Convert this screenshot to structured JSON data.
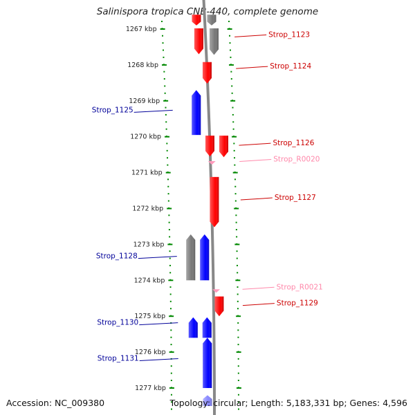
{
  "title": "Salinispora tropica CNB-440, complete genome",
  "footer": {
    "accession": "Accession: NC_009380",
    "summary": "Topology: circular; Length: 5,183,331 bp; Genes: 4,596"
  },
  "ticks": [
    {
      "label": "1267 kbp",
      "kb": 1267
    },
    {
      "label": "1268 kbp",
      "kb": 1268
    },
    {
      "label": "1269 kbp",
      "kb": 1269
    },
    {
      "label": "1270 kbp",
      "kb": 1270
    },
    {
      "label": "1271 kbp",
      "kb": 1271
    },
    {
      "label": "1272 kbp",
      "kb": 1272
    },
    {
      "label": "1273 kbp",
      "kb": 1273
    },
    {
      "label": "1274 kbp",
      "kb": 1274
    },
    {
      "label": "1275 kbp",
      "kb": 1275
    },
    {
      "label": "1276 kbp",
      "kb": 1276
    },
    {
      "label": "1277 kbp",
      "kb": 1277
    }
  ],
  "features": [
    {
      "strand": "forward",
      "type": "cds",
      "color": "#ff0000",
      "start": 1266.6,
      "end": 1266.9
    },
    {
      "strand": "forward",
      "type": "pseudo",
      "color": "#777777",
      "start": 1266.6,
      "end": 1266.9
    },
    {
      "strand": "forward",
      "type": "cds",
      "color": "#ff0000",
      "start": 1266.98,
      "end": 1267.7
    },
    {
      "strand": "forward",
      "type": "pseudo",
      "color": "#777777",
      "start": 1266.98,
      "end": 1267.72
    },
    {
      "strand": "forward",
      "type": "cds",
      "color": "#ff0000",
      "start": 1267.92,
      "end": 1268.52
    },
    {
      "strand": "reverse",
      "type": "cds",
      "color": "#0000ff",
      "start": 1268.7,
      "end": 1269.95
    },
    {
      "strand": "forward",
      "type": "cds",
      "color": "#ff0000",
      "start": 1269.97,
      "end": 1270.55
    },
    {
      "strand": "forward",
      "type": "cds",
      "color": "#ff0000",
      "start": 1269.97,
      "end": 1270.57
    },
    {
      "strand": "forward",
      "type": "rna",
      "color": "#ff99bb",
      "start": 1270.68,
      "end": 1270.77
    },
    {
      "strand": "forward",
      "type": "cds",
      "color": "#ff0000",
      "start": 1271.12,
      "end": 1272.52
    },
    {
      "strand": "reverse",
      "type": "pseudo",
      "color": "#777777",
      "start": 1272.72,
      "end": 1274.0
    },
    {
      "strand": "reverse",
      "type": "cds",
      "color": "#0000ff",
      "start": 1272.72,
      "end": 1274.0
    },
    {
      "strand": "forward",
      "type": "rna",
      "color": "#ff99bb",
      "start": 1274.25,
      "end": 1274.33
    },
    {
      "strand": "forward",
      "type": "cds",
      "color": "#ff0000",
      "start": 1274.45,
      "end": 1275.0
    },
    {
      "strand": "reverse",
      "type": "cds",
      "color": "#0000ff",
      "start": 1275.03,
      "end": 1275.6
    },
    {
      "strand": "reverse",
      "type": "cds",
      "color": "#0000ff",
      "start": 1275.03,
      "end": 1275.6
    },
    {
      "strand": "reverse",
      "type": "cds",
      "color": "#0000ff",
      "start": 1275.6,
      "end": 1277.0
    },
    {
      "strand": "reverse",
      "type": "cds",
      "color": "#8888ff",
      "start": 1277.2,
      "end": 1277.5
    }
  ],
  "labels": [
    {
      "text": "Strop_1123",
      "side": "right",
      "color": "#cc0000",
      "kb": 1267.22
    },
    {
      "text": "Strop_1124",
      "side": "right",
      "color": "#cc0000",
      "kb": 1268.1
    },
    {
      "text": "Strop_1125",
      "side": "left",
      "color": "#000099",
      "kb": 1269.3
    },
    {
      "text": "Strop_1126",
      "side": "right",
      "color": "#cc0000",
      "kb": 1270.24
    },
    {
      "text": "Strop_R0020",
      "side": "right",
      "color": "#ff88aa",
      "kb": 1270.69
    },
    {
      "text": "Strop_1127",
      "side": "right",
      "color": "#cc0000",
      "kb": 1271.76
    },
    {
      "text": "Strop_1128",
      "side": "left",
      "color": "#000099",
      "kb": 1273.37
    },
    {
      "text": "Strop_R0021",
      "side": "right",
      "color": "#ff88aa",
      "kb": 1274.25
    },
    {
      "text": "Strop_1129",
      "side": "right",
      "color": "#cc0000",
      "kb": 1274.7
    },
    {
      "text": "Strop_1130",
      "side": "left",
      "color": "#000099",
      "kb": 1275.22
    },
    {
      "text": "Strop_1131",
      "side": "left",
      "color": "#000099",
      "kb": 1276.22
    }
  ],
  "colors": {
    "forward_cds": "#ff0000",
    "reverse_cds": "#0000ff",
    "rna": "#ff99bb",
    "pseudo": "#777777",
    "backbone": "#888888",
    "ticks": "#008800"
  }
}
